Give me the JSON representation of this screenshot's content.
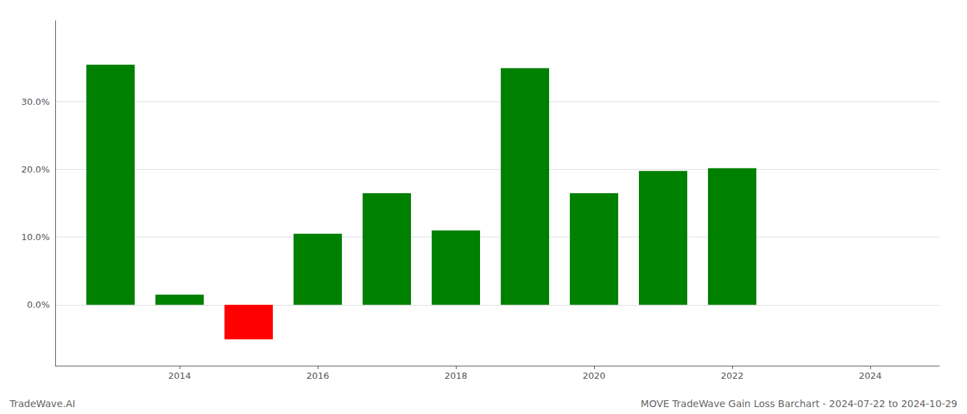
{
  "chart_data": {
    "type": "bar",
    "x": [
      2013,
      2014,
      2015,
      2016,
      2017,
      2018,
      2019,
      2020,
      2021,
      2022,
      2023
    ],
    "values": [
      0.355,
      0.015,
      -0.051,
      0.105,
      0.165,
      0.11,
      0.35,
      0.165,
      0.198,
      0.202,
      0.0
    ],
    "colors": [
      "#008000",
      "#008000",
      "#ff0000",
      "#008000",
      "#008000",
      "#008000",
      "#008000",
      "#008000",
      "#008000",
      "#008000",
      "#008000"
    ],
    "xlim": [
      2012.2,
      2025.0
    ],
    "xticks": [
      2014,
      2016,
      2018,
      2020,
      2022,
      2024
    ],
    "ylim": [
      -0.09,
      0.42
    ],
    "yticks": [
      {
        "value": 0.0,
        "label": "0.0%"
      },
      {
        "value": 0.1,
        "label": "10.0%"
      },
      {
        "value": 0.2,
        "label": "20.0%"
      },
      {
        "value": 0.3,
        "label": "30.0%"
      }
    ],
    "grid": true,
    "annotations": [
      "TradeWave.AI",
      "MOVE TradeWave Gain Loss Barchart - 2024-07-22 to 2024-10-29"
    ]
  }
}
